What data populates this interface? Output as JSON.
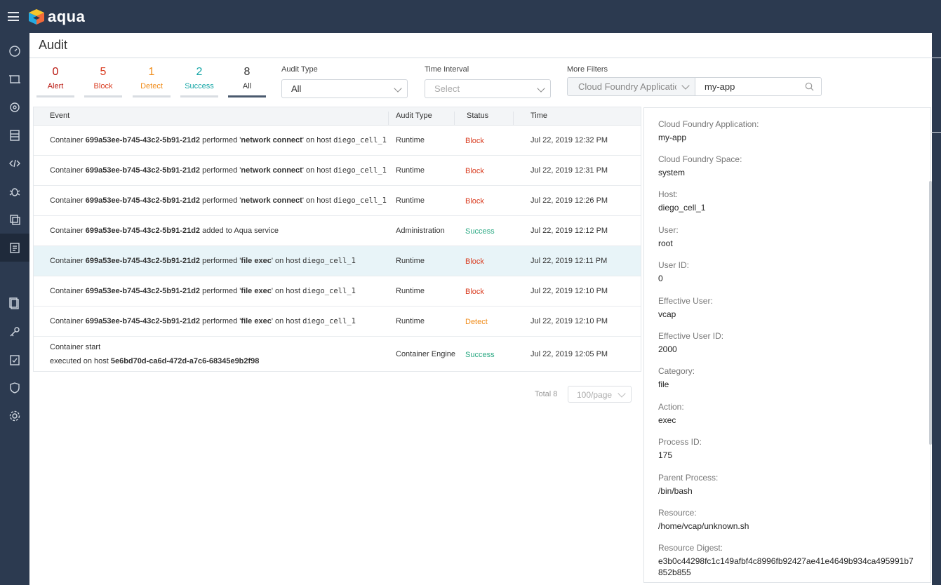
{
  "app": {
    "brand": "aqua"
  },
  "page": {
    "title": "Audit"
  },
  "stats": [
    {
      "count": "0",
      "label": "Alert"
    },
    {
      "count": "5",
      "label": "Block"
    },
    {
      "count": "1",
      "label": "Detect"
    },
    {
      "count": "2",
      "label": "Success"
    },
    {
      "count": "8",
      "label": "All"
    }
  ],
  "filters": {
    "audit_type_label": "Audit Type",
    "audit_type_value": "All",
    "time_interval_label": "Time Interval",
    "time_interval_placeholder": "Select",
    "more_filters_label": "More Filters",
    "more_filters_field": "Cloud Foundry Applicatic",
    "more_filters_value": "my-app"
  },
  "table": {
    "headers": {
      "event": "Event",
      "audit_type": "Audit Type",
      "status": "Status",
      "time": "Time"
    },
    "rows": [
      {
        "p1": "Container ",
        "id": "699a53ee-b745-43c2-5b91-21d2",
        "p2": " performed '",
        "action": "network connect",
        "p3": "' on host ",
        "host": "diego_cell_1",
        "audit_type": "Runtime",
        "status": "Block",
        "time": "Jul 22, 2019 12:32 PM"
      },
      {
        "p1": "Container ",
        "id": "699a53ee-b745-43c2-5b91-21d2",
        "p2": " performed '",
        "action": "network connect",
        "p3": "' on host ",
        "host": "diego_cell_1",
        "audit_type": "Runtime",
        "status": "Block",
        "time": "Jul 22, 2019 12:31 PM"
      },
      {
        "p1": "Container ",
        "id": "699a53ee-b745-43c2-5b91-21d2",
        "p2": " performed '",
        "action": "network connect",
        "p3": "' on host ",
        "host": "diego_cell_1",
        "audit_type": "Runtime",
        "status": "Block",
        "time": "Jul 22, 2019 12:26 PM"
      },
      {
        "p1": "Container ",
        "id": "699a53ee-b745-43c2-5b91-21d2",
        "p2": " added to Aqua service",
        "action": "",
        "p3": "",
        "host": "",
        "audit_type": "Administration",
        "status": "Success",
        "time": "Jul 22, 2019 12:12 PM"
      },
      {
        "p1": "Container ",
        "id": "699a53ee-b745-43c2-5b91-21d2",
        "p2": " performed '",
        "action": "file exec",
        "p3": "' on host ",
        "host": "diego_cell_1",
        "audit_type": "Runtime",
        "status": "Block",
        "time": "Jul 22, 2019 12:11 PM"
      },
      {
        "p1": "Container ",
        "id": "699a53ee-b745-43c2-5b91-21d2",
        "p2": " performed '",
        "action": "file exec",
        "p3": "' on host ",
        "host": "diego_cell_1",
        "audit_type": "Runtime",
        "status": "Block",
        "time": "Jul 22, 2019 12:10 PM"
      },
      {
        "p1": "Container ",
        "id": "699a53ee-b745-43c2-5b91-21d2",
        "p2": " performed '",
        "action": "file exec",
        "p3": "' on host ",
        "host": "diego_cell_1",
        "audit_type": "Runtime",
        "status": "Detect",
        "time": "Jul 22, 2019 12:10 PM"
      }
    ],
    "last_row": {
      "title": "Container start",
      "line2_prefix": "executed on host ",
      "host_id": "5e6bd70d-ca6d-472d-a7c6-68345e9b2f98",
      "audit_type": "Container Engine",
      "status": "Success",
      "time": "Jul 22, 2019 12:05 PM"
    }
  },
  "pagination": {
    "total": "Total 8",
    "page_size": "100/page"
  },
  "details": [
    {
      "key": "Cloud Foundry Application:",
      "value": "my-app"
    },
    {
      "key": "Cloud Foundry Space:",
      "value": "system"
    },
    {
      "key": "Host:",
      "value": "diego_cell_1"
    },
    {
      "key": "User:",
      "value": "root"
    },
    {
      "key": "User ID:",
      "value": "0"
    },
    {
      "key": "Effective User:",
      "value": "vcap"
    },
    {
      "key": "Effective User ID:",
      "value": "2000"
    },
    {
      "key": "Category:",
      "value": "file"
    },
    {
      "key": "Action:",
      "value": "exec"
    },
    {
      "key": "Process ID:",
      "value": "175"
    },
    {
      "key": "Parent Process:",
      "value": "/bin/bash"
    },
    {
      "key": "Resource:",
      "value": "/home/vcap/unknown.sh"
    },
    {
      "key": "Resource Digest:",
      "value": "e3b0c44298fc1c149afbf4c8996fb92427ae41e4649b934ca495991b7852b855"
    }
  ],
  "colors": {
    "nav": "#2c3a50",
    "block": "#d93a1e",
    "success": "#29a882",
    "detect": "#f08c1a",
    "alert": "#b8140c"
  }
}
